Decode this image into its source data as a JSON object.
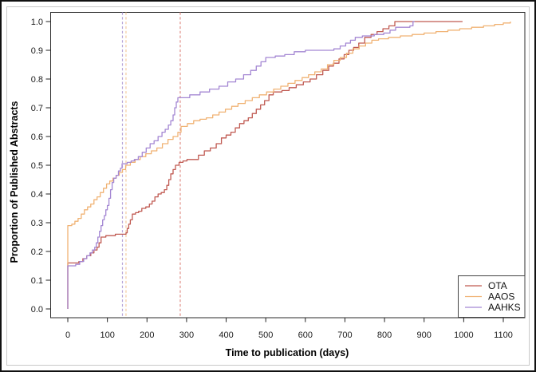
{
  "figure": {
    "border_color": "#111111",
    "inner_frame_color": "#c9c9c9",
    "plot_box_color": "#2b2b2b"
  },
  "chart_data": {
    "type": "line",
    "subtype": "step-after-cumulative-incidence",
    "title": "",
    "xlabel": "Time to publication (days)",
    "ylabel": "Proportion of Published Abstracts",
    "xlim": [
      0,
      1168
    ],
    "ylim": [
      0,
      1
    ],
    "grid": false,
    "legend_position": "bottom-right",
    "x_ticks": [
      0,
      100,
      200,
      300,
      400,
      500,
      600,
      700,
      800,
      900,
      1000,
      1100
    ],
    "y_ticks": [
      0.0,
      0.1,
      0.2,
      0.3,
      0.4,
      0.5,
      0.6,
      0.7,
      0.8,
      0.9,
      1.0
    ],
    "vlines": [
      {
        "x": 138,
        "series": "AAHKS",
        "color": "#b5a3d8",
        "style": "dashed"
      },
      {
        "x": 147,
        "series": "AAOS",
        "color": "#f3cb9e",
        "style": "dashed"
      },
      {
        "x": 284,
        "series": "OTA",
        "color": "#df8e87",
        "style": "dashed"
      }
    ],
    "series": [
      {
        "name": "OTA",
        "color": "#c05a52",
        "points": [
          [
            0,
            0
          ],
          [
            0,
            0.16
          ],
          [
            28,
            0.165
          ],
          [
            38,
            0.175
          ],
          [
            48,
            0.185
          ],
          [
            58,
            0.195
          ],
          [
            66,
            0.205
          ],
          [
            74,
            0.215
          ],
          [
            79,
            0.23
          ],
          [
            84,
            0.25
          ],
          [
            96,
            0.255
          ],
          [
            120,
            0.26
          ],
          [
            147,
            0.265
          ],
          [
            150,
            0.28
          ],
          [
            154,
            0.295
          ],
          [
            158,
            0.31
          ],
          [
            163,
            0.33
          ],
          [
            171,
            0.335
          ],
          [
            179,
            0.34
          ],
          [
            187,
            0.35
          ],
          [
            197,
            0.355
          ],
          [
            206,
            0.365
          ],
          [
            213,
            0.375
          ],
          [
            220,
            0.39
          ],
          [
            228,
            0.4
          ],
          [
            236,
            0.405
          ],
          [
            244,
            0.415
          ],
          [
            250,
            0.43
          ],
          [
            255,
            0.45
          ],
          [
            260,
            0.47
          ],
          [
            266,
            0.485
          ],
          [
            272,
            0.5
          ],
          [
            281,
            0.51
          ],
          [
            291,
            0.515
          ],
          [
            301,
            0.52
          ],
          [
            330,
            0.535
          ],
          [
            345,
            0.55
          ],
          [
            360,
            0.56
          ],
          [
            375,
            0.575
          ],
          [
            388,
            0.595
          ],
          [
            400,
            0.605
          ],
          [
            412,
            0.615
          ],
          [
            423,
            0.63
          ],
          [
            434,
            0.645
          ],
          [
            445,
            0.655
          ],
          [
            456,
            0.665
          ],
          [
            466,
            0.68
          ],
          [
            476,
            0.695
          ],
          [
            487,
            0.71
          ],
          [
            497,
            0.725
          ],
          [
            508,
            0.745
          ],
          [
            519,
            0.755
          ],
          [
            541,
            0.76
          ],
          [
            559,
            0.77
          ],
          [
            577,
            0.78
          ],
          [
            595,
            0.79
          ],
          [
            612,
            0.8
          ],
          [
            628,
            0.815
          ],
          [
            644,
            0.83
          ],
          [
            659,
            0.845
          ],
          [
            671,
            0.855
          ],
          [
            685,
            0.87
          ],
          [
            698,
            0.885
          ],
          [
            710,
            0.9
          ],
          [
            722,
            0.91
          ],
          [
            735,
            0.925
          ],
          [
            750,
            0.945
          ],
          [
            766,
            0.955
          ],
          [
            781,
            0.965
          ],
          [
            796,
            0.975
          ],
          [
            811,
            0.985
          ],
          [
            826,
            1
          ],
          [
            997,
            1
          ]
        ]
      },
      {
        "name": "AAOS",
        "color": "#f0b273",
        "points": [
          [
            0,
            0
          ],
          [
            0,
            0.29
          ],
          [
            10,
            0.295
          ],
          [
            18,
            0.305
          ],
          [
            26,
            0.315
          ],
          [
            34,
            0.33
          ],
          [
            42,
            0.345
          ],
          [
            50,
            0.355
          ],
          [
            58,
            0.365
          ],
          [
            66,
            0.38
          ],
          [
            74,
            0.39
          ],
          [
            82,
            0.405
          ],
          [
            90,
            0.42
          ],
          [
            98,
            0.435
          ],
          [
            106,
            0.445
          ],
          [
            114,
            0.455
          ],
          [
            122,
            0.465
          ],
          [
            130,
            0.475
          ],
          [
            138,
            0.485
          ],
          [
            146,
            0.5
          ],
          [
            158,
            0.51
          ],
          [
            170,
            0.52
          ],
          [
            183,
            0.53
          ],
          [
            197,
            0.54
          ],
          [
            211,
            0.55
          ],
          [
            225,
            0.56
          ],
          [
            239,
            0.575
          ],
          [
            253,
            0.59
          ],
          [
            266,
            0.6
          ],
          [
            278,
            0.615
          ],
          [
            286,
            0.635
          ],
          [
            302,
            0.645
          ],
          [
            318,
            0.655
          ],
          [
            334,
            0.66
          ],
          [
            350,
            0.665
          ],
          [
            366,
            0.675
          ],
          [
            382,
            0.685
          ],
          [
            398,
            0.695
          ],
          [
            414,
            0.705
          ],
          [
            430,
            0.715
          ],
          [
            448,
            0.725
          ],
          [
            466,
            0.735
          ],
          [
            484,
            0.745
          ],
          [
            502,
            0.755
          ],
          [
            520,
            0.765
          ],
          [
            538,
            0.775
          ],
          [
            556,
            0.785
          ],
          [
            574,
            0.795
          ],
          [
            592,
            0.805
          ],
          [
            608,
            0.815
          ],
          [
            624,
            0.825
          ],
          [
            640,
            0.835
          ],
          [
            656,
            0.85
          ],
          [
            672,
            0.865
          ],
          [
            688,
            0.875
          ],
          [
            704,
            0.89
          ],
          [
            720,
            0.905
          ],
          [
            736,
            0.915
          ],
          [
            752,
            0.925
          ],
          [
            768,
            0.935
          ],
          [
            785,
            0.94
          ],
          [
            810,
            0.945
          ],
          [
            840,
            0.95
          ],
          [
            870,
            0.955
          ],
          [
            900,
            0.96
          ],
          [
            930,
            0.965
          ],
          [
            960,
            0.97
          ],
          [
            990,
            0.975
          ],
          [
            1020,
            0.98
          ],
          [
            1050,
            0.985
          ],
          [
            1078,
            0.99
          ],
          [
            1100,
            0.995
          ],
          [
            1118,
            1
          ]
        ]
      },
      {
        "name": "AAHKS",
        "color": "#a487d3",
        "points": [
          [
            0,
            0
          ],
          [
            0,
            0.15
          ],
          [
            20,
            0.155
          ],
          [
            30,
            0.165
          ],
          [
            40,
            0.175
          ],
          [
            48,
            0.185
          ],
          [
            56,
            0.195
          ],
          [
            62,
            0.205
          ],
          [
            68,
            0.215
          ],
          [
            72,
            0.23
          ],
          [
            76,
            0.25
          ],
          [
            80,
            0.27
          ],
          [
            84,
            0.29
          ],
          [
            88,
            0.31
          ],
          [
            92,
            0.325
          ],
          [
            96,
            0.345
          ],
          [
            100,
            0.36
          ],
          [
            104,
            0.385
          ],
          [
            108,
            0.415
          ],
          [
            112,
            0.44
          ],
          [
            116,
            0.455
          ],
          [
            122,
            0.465
          ],
          [
            128,
            0.48
          ],
          [
            133,
            0.49
          ],
          [
            137,
            0.505
          ],
          [
            150,
            0.51
          ],
          [
            160,
            0.515
          ],
          [
            168,
            0.52
          ],
          [
            178,
            0.53
          ],
          [
            188,
            0.545
          ],
          [
            198,
            0.56
          ],
          [
            208,
            0.575
          ],
          [
            218,
            0.585
          ],
          [
            228,
            0.6
          ],
          [
            238,
            0.615
          ],
          [
            246,
            0.625
          ],
          [
            254,
            0.64
          ],
          [
            260,
            0.655
          ],
          [
            266,
            0.675
          ],
          [
            270,
            0.7
          ],
          [
            274,
            0.72
          ],
          [
            278,
            0.735
          ],
          [
            308,
            0.745
          ],
          [
            334,
            0.755
          ],
          [
            358,
            0.765
          ],
          [
            382,
            0.775
          ],
          [
            404,
            0.79
          ],
          [
            424,
            0.8
          ],
          [
            444,
            0.815
          ],
          [
            462,
            0.83
          ],
          [
            476,
            0.845
          ],
          [
            488,
            0.86
          ],
          [
            500,
            0.875
          ],
          [
            524,
            0.88
          ],
          [
            548,
            0.885
          ],
          [
            572,
            0.895
          ],
          [
            600,
            0.9
          ],
          [
            672,
            0.905
          ],
          [
            688,
            0.915
          ],
          [
            702,
            0.925
          ],
          [
            714,
            0.935
          ],
          [
            726,
            0.945
          ],
          [
            744,
            0.95
          ],
          [
            774,
            0.955
          ],
          [
            798,
            0.96
          ],
          [
            814,
            0.97
          ],
          [
            828,
            0.98
          ],
          [
            864,
            0.985
          ],
          [
            872,
            1
          ],
          [
            876,
            1
          ]
        ]
      }
    ]
  },
  "legend": {
    "items": [
      "OTA",
      "AAOS",
      "AAHKS"
    ]
  }
}
